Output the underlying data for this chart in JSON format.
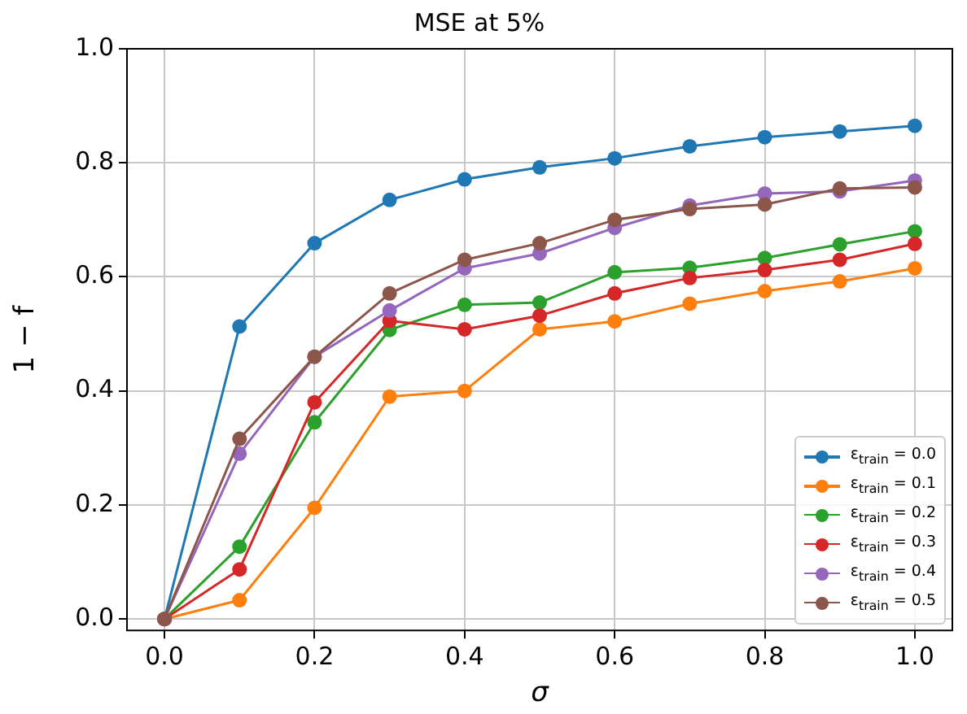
{
  "chart_data": {
    "type": "line",
    "title": "MSE at 5%",
    "xlabel": "σ",
    "ylabel": "1 − f",
    "x": [
      0,
      0.1,
      0.2,
      0.3,
      0.4,
      0.5,
      0.6,
      0.7,
      0.8,
      0.9,
      1.0
    ],
    "xlim": [
      -0.05,
      1.05
    ],
    "xticks": [
      {
        "value": 0,
        "label": "0.0"
      },
      {
        "value": 0.2,
        "label": "0.2"
      },
      {
        "value": 0.4,
        "label": "0.4"
      },
      {
        "value": 0.6,
        "label": "0.6"
      },
      {
        "value": 0.8,
        "label": "0.8"
      },
      {
        "value": 1.0,
        "label": "1.0"
      }
    ],
    "ylim": [
      -0.02,
      1.0
    ],
    "yticks": [
      {
        "value": 0,
        "label": "0.0"
      },
      {
        "value": 0.2,
        "label": "0.2"
      },
      {
        "value": 0.4,
        "label": "0.4"
      },
      {
        "value": 0.6,
        "label": "0.6"
      },
      {
        "value": 0.8,
        "label": "0.8"
      },
      {
        "value": 1.0,
        "label": "1.0"
      }
    ],
    "grid": true,
    "legend": "bottom right",
    "marker": "circle",
    "line_style": "solid",
    "series": [
      {
        "name": "ε$_{train}$ = 0.0",
        "color": "#1f77b4",
        "values": [
          0,
          0.513,
          0.659,
          0.735,
          0.771,
          0.792,
          0.808,
          0.829,
          0.845,
          0.855,
          0.865
        ]
      },
      {
        "name": "ε$_{train}$ = 0.1",
        "color": "#ff7f0e",
        "values": [
          0,
          0.033,
          0.195,
          0.39,
          0.4,
          0.508,
          0.522,
          0.553,
          0.575,
          0.592,
          0.615
        ]
      },
      {
        "name": "ε$_{train}$ = 0.2",
        "color": "#2ca02c",
        "values": [
          0,
          0.127,
          0.345,
          0.507,
          0.551,
          0.555,
          0.608,
          0.616,
          0.633,
          0.657,
          0.68
        ]
      },
      {
        "name": "ε$_{train}$ = 0.3",
        "color": "#d62728",
        "values": [
          0,
          0.087,
          0.38,
          0.523,
          0.508,
          0.532,
          0.571,
          0.598,
          0.612,
          0.63,
          0.658
        ]
      },
      {
        "name": "ε$_{train}$ = 0.4",
        "color": "#9467bd",
        "values": [
          0,
          0.29,
          0.46,
          0.541,
          0.615,
          0.641,
          0.686,
          0.725,
          0.746,
          0.75,
          0.769
        ]
      },
      {
        "name": "ε$_{train}$ = 0.5",
        "color": "#8c564b",
        "values": [
          0,
          0.316,
          0.46,
          0.571,
          0.63,
          0.659,
          0.7,
          0.719,
          0.727,
          0.755,
          0.757
        ]
      }
    ]
  }
}
